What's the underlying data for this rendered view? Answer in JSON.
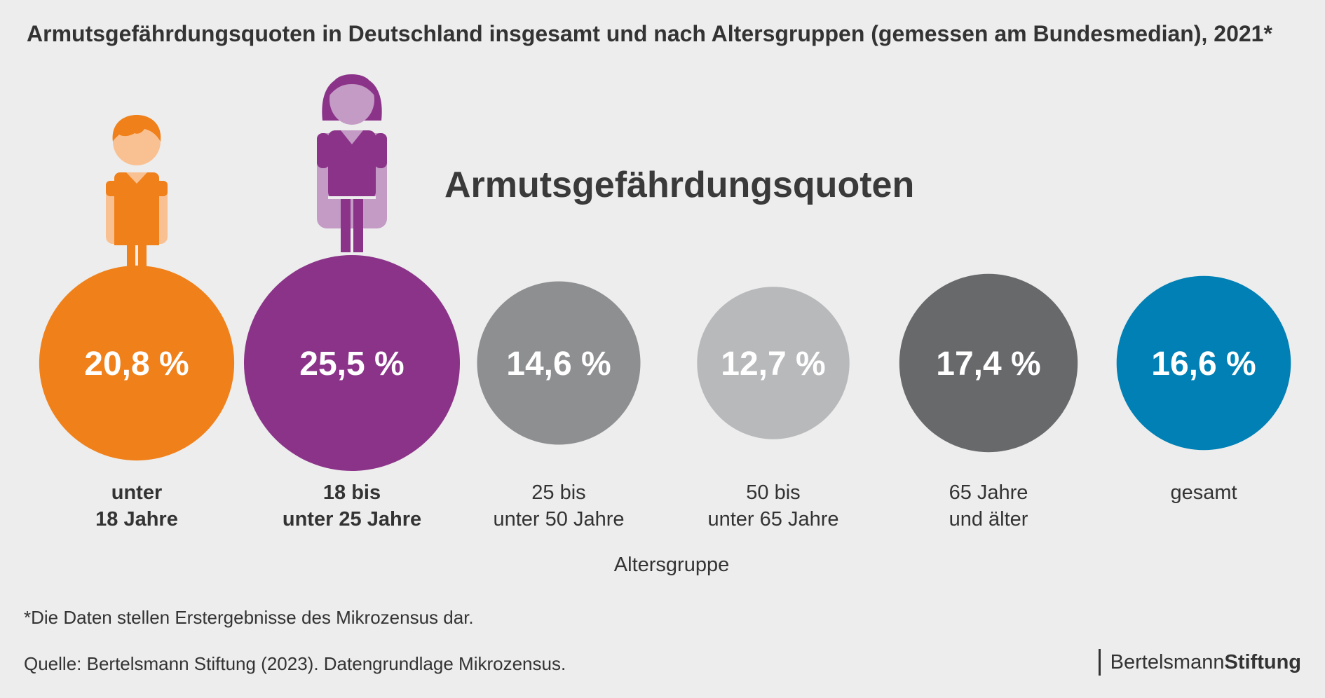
{
  "title": "Armutsgefährdungsquoten in Deutschland insgesamt und nach Altersgruppen (gemessen am Bundesmedian), 2021*",
  "chart_data": {
    "type": "bubble",
    "title": "Armutsgefährdungsquoten",
    "xlabel": "Altersgruppe",
    "unit": "%",
    "categories": [
      {
        "lines": [
          "unter",
          "18 Jahre"
        ],
        "value": 20.8,
        "display": "20,8 %",
        "color": "#f08019",
        "bold": true,
        "figure": "child"
      },
      {
        "lines": [
          "18 bis",
          "unter 25 Jahre"
        ],
        "value": 25.5,
        "display": "25,5 %",
        "color": "#8b3389",
        "bold": true,
        "figure": "young-adult"
      },
      {
        "lines": [
          "25 bis",
          "unter 50 Jahre"
        ],
        "value": 14.6,
        "display": "14,6 %",
        "color": "#8e8f91",
        "bold": false
      },
      {
        "lines": [
          "50 bis",
          "unter 65 Jahre"
        ],
        "value": 12.7,
        "display": "12,7 %",
        "color": "#b8b9bb",
        "bold": false
      },
      {
        "lines": [
          "65 Jahre",
          "und älter"
        ],
        "value": 17.4,
        "display": "17,4 %",
        "color": "#68696b",
        "bold": false
      },
      {
        "lines": [
          "gesamt"
        ],
        "value": 16.6,
        "display": "16,6 %",
        "color": "#0080b5",
        "bold": false
      }
    ]
  },
  "footnote": "*Die Daten stellen Erstergebnisse des Mikrozensus dar.",
  "source": "Quelle: Bertelsmann Stiftung (2023). Datengrundlage Mikrozensus.",
  "logo": {
    "light": "Bertelsmann",
    "bold": "Stiftung"
  },
  "icons": [
    "child-figure-icon",
    "young-woman-figure-icon"
  ]
}
